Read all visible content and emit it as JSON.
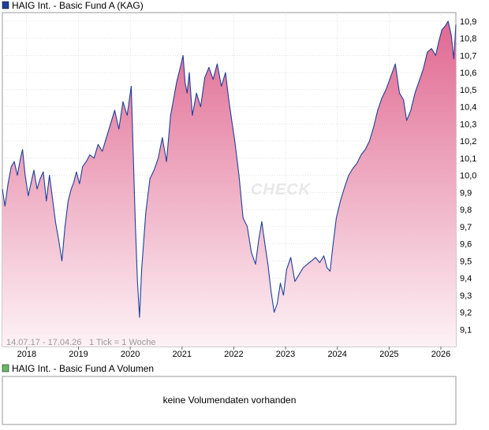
{
  "legend": {
    "main_label": "HAIG Int. - Basic Fund A (KAG)",
    "main_color": "#1f3f99",
    "volume_label": "HAIG Int. - Basic Fund A Volumen",
    "volume_color": "#66bb66"
  },
  "footer": {
    "range": "14.07.17 - 17.04.26",
    "tick_info": "1 Tick = 1 Woche"
  },
  "watermark": "CHECK",
  "volume_panel": {
    "message": "keine Volumendaten vorhanden"
  },
  "colors": {
    "line": "#1f3f99",
    "fill_top": "#e06890",
    "fill_bottom": "#fdf2f6",
    "grid": "#cfcfcf",
    "frame": "#999999"
  },
  "chart_data": {
    "type": "area",
    "ylim": [
      9.0,
      10.95
    ],
    "xlim": [
      2017.53,
      2026.29
    ],
    "y_ticks": [
      "9,1",
      "9,2",
      "9,3",
      "9,4",
      "9,5",
      "9,6",
      "9,7",
      "9,8",
      "9,9",
      "10,0",
      "10,1",
      "10,2",
      "10,3",
      "10,4",
      "10,5",
      "10,6",
      "10,7",
      "10,8",
      "10,9"
    ],
    "y_tick_values": [
      9.1,
      9.2,
      9.3,
      9.4,
      9.5,
      9.6,
      9.7,
      9.8,
      9.9,
      10.0,
      10.1,
      10.2,
      10.3,
      10.4,
      10.5,
      10.6,
      10.7,
      10.8,
      10.9
    ],
    "x_ticks": [
      "2018",
      "2019",
      "2020",
      "2021",
      "2022",
      "2023",
      "2024",
      "2025",
      "2026"
    ],
    "x_tick_values": [
      2018,
      2019,
      2020,
      2021,
      2022,
      2023,
      2024,
      2025,
      2026
    ],
    "series": [
      {
        "x": [
          2017.53,
          2017.58,
          2017.64,
          2017.7,
          2017.76,
          2017.82,
          2017.88,
          2017.92,
          2017.97,
          2018.03,
          2018.08,
          2018.14,
          2018.2,
          2018.26,
          2018.32,
          2018.38,
          2018.44,
          2018.5,
          2018.56,
          2018.62,
          2018.68,
          2018.74,
          2018.8,
          2018.86,
          2018.91,
          2018.96,
          2019.02,
          2019.08,
          2019.15,
          2019.22,
          2019.3,
          2019.38,
          2019.46,
          2019.54,
          2019.62,
          2019.7,
          2019.78,
          2019.86,
          2019.94,
          2020.02,
          2020.06,
          2020.1,
          2020.14,
          2020.18,
          2020.22,
          2020.3,
          2020.38,
          2020.46,
          2020.54,
          2020.62,
          2020.7,
          2020.78,
          2020.84,
          2020.9,
          2020.96,
          2021.02,
          2021.06,
          2021.1,
          2021.14,
          2021.2,
          2021.28,
          2021.36,
          2021.44,
          2021.52,
          2021.6,
          2021.68,
          2021.76,
          2021.84,
          2021.9,
          2021.96,
          2022.02,
          2022.1,
          2022.18,
          2022.26,
          2022.34,
          2022.42,
          2022.48,
          2022.54,
          2022.6,
          2022.66,
          2022.72,
          2022.78,
          2022.84,
          2022.9,
          2022.96,
          2023.02,
          2023.1,
          2023.18,
          2023.26,
          2023.34,
          2023.42,
          2023.5,
          2023.58,
          2023.66,
          2023.74,
          2023.8,
          2023.86,
          2023.92,
          2023.98,
          2024.06,
          2024.14,
          2024.22,
          2024.3,
          2024.38,
          2024.46,
          2024.54,
          2024.62,
          2024.7,
          2024.78,
          2024.86,
          2024.94,
          2025.0,
          2025.06,
          2025.12,
          2025.2,
          2025.28,
          2025.34,
          2025.42,
          2025.5,
          2025.58,
          2025.66,
          2025.74,
          2025.82,
          2025.9,
          2025.96,
          2026.02,
          2026.08,
          2026.14,
          2026.2,
          2026.25,
          2026.29
        ],
        "values": [
          9.92,
          9.82,
          9.95,
          10.05,
          10.08,
          10.0,
          10.1,
          10.15,
          10.0,
          9.88,
          9.95,
          10.03,
          9.92,
          9.98,
          10.02,
          9.85,
          10.0,
          9.86,
          9.72,
          9.62,
          9.5,
          9.7,
          9.85,
          9.92,
          9.96,
          10.02,
          9.95,
          10.05,
          10.08,
          10.12,
          10.1,
          10.18,
          10.14,
          10.22,
          10.3,
          10.38,
          10.27,
          10.43,
          10.35,
          10.52,
          10.1,
          9.7,
          9.38,
          9.17,
          9.45,
          9.78,
          9.98,
          10.03,
          10.1,
          10.22,
          10.08,
          10.35,
          10.45,
          10.55,
          10.62,
          10.7,
          10.54,
          10.48,
          10.6,
          10.35,
          10.48,
          10.4,
          10.57,
          10.63,
          10.56,
          10.65,
          10.52,
          10.6,
          10.45,
          10.32,
          10.2,
          10.0,
          9.75,
          9.7,
          9.55,
          9.48,
          9.62,
          9.73,
          9.6,
          9.48,
          9.32,
          9.2,
          9.25,
          9.37,
          9.3,
          9.45,
          9.52,
          9.38,
          9.42,
          9.46,
          9.48,
          9.5,
          9.52,
          9.49,
          9.53,
          9.46,
          9.44,
          9.6,
          9.75,
          9.85,
          9.93,
          10.0,
          10.04,
          10.07,
          10.12,
          10.15,
          10.2,
          10.28,
          10.38,
          10.45,
          10.5,
          10.55,
          10.6,
          10.65,
          10.48,
          10.44,
          10.32,
          10.38,
          10.48,
          10.55,
          10.62,
          10.72,
          10.74,
          10.7,
          10.78,
          10.85,
          10.87,
          10.9,
          10.82,
          10.68,
          10.88
        ]
      }
    ]
  }
}
